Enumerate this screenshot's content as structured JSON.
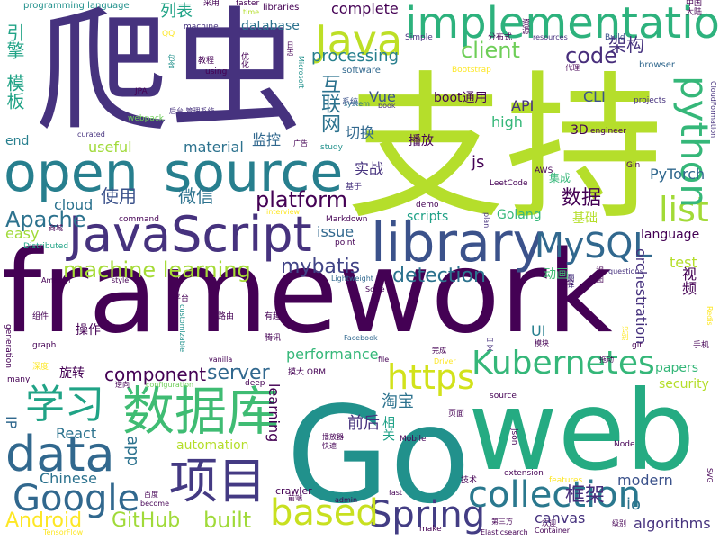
{
  "cloud": {
    "colors": {
      "dark_purple": "#440154",
      "purple": "#46327e",
      "indigo": "#3b528b",
      "blue": "#31688e",
      "teal": "#277f8e",
      "teal_green": "#1fa187",
      "green": "#35b779",
      "light_green": "#6ece58",
      "lime": "#b5de2b",
      "yellow": "#fde725"
    },
    "words": [
      "framework",
      "Go",
      "web",
      "支持",
      "爬虫",
      "open",
      "source",
      "JavaScript",
      "library",
      "implementation",
      "Java",
      "数据库",
      "项目",
      "data",
      "Google",
      "collection",
      "Kubernetes",
      "Spring",
      "MySQL",
      "list",
      "https",
      "based",
      "python",
      "学习",
      "machine learning",
      "mybatis",
      "Apache",
      "detection",
      "client",
      "platform",
      "code",
      "Android",
      "GitHub",
      "built",
      "server",
      "component",
      "框架",
      "互联网",
      "模板",
      "引擎",
      "微信",
      "使用",
      "数据",
      "实战",
      "切换",
      "监控",
      "架构",
      "processing",
      "database",
      "列表",
      "complete",
      "programming language",
      "machine",
      "libraries",
      "faster",
      "采用",
      "time",
      "QQ",
      "教程",
      "using",
      "包含",
      "优化",
      "系统",
      "software",
      "Bootstrap",
      "资源",
      "分布式",
      "Simple",
      "resources",
      "Build",
      "中国",
      "大陆",
      "代理",
      "browser",
      "projects",
      "CloudFormation",
      "engineer",
      "Gin",
      "AWS",
      "LeetCode",
      "集成",
      "基于",
      "demo",
      "plan",
      "Markdown",
      "interview",
      "point",
      "商城",
      "Distributed",
      "easy",
      "command",
      "cloud",
      "useful",
      "material",
      "end",
      "3D",
      "high",
      "API",
      "CLI",
      "boot通用",
      "Vue",
      "book",
      "system",
      "study",
      "广告",
      "JPA",
      "webpack",
      "curated",
      "后台 管理系统",
      "Microsoft",
      "日志",
      "Amazon",
      "style",
      "Lightweight",
      "Scale",
      "questions",
      "平台",
      "路由",
      "有趣",
      "腾讯",
      "customizable",
      "vanilla",
      "deep",
      "configuration",
      "最全",
      "Redis",
      "git",
      "翻译",
      "识别",
      "模块",
      "完成",
      "Facebook",
      "Driver",
      "拖动",
      "中文",
      "performance",
      "orchestration",
      "security",
      "papers",
      "UI",
      "React",
      "Chinese",
      "淘宝",
      "前后",
      "相关",
      "页面",
      "播放器",
      "快速",
      "Mobile",
      "json",
      "SVG",
      "Node",
      "技术",
      "extension",
      "features",
      "级别",
      "Container",
      "Elasticsearch",
      "第三方",
      "欢迎",
      "make",
      "admin",
      "fast",
      "前端",
      "crawler",
      "百度",
      "become",
      "TensorFlow",
      "modern",
      "algorithms",
      "canvas",
      "io",
      "app",
      "automation",
      "learning",
      "IP",
      "PyTorch",
      "视频",
      "test",
      "language",
      "Golang",
      "基础",
      "动画",
      "scripts",
      "issue",
      "js",
      "播放",
      "操作",
      "旋转",
      "generation",
      "graph",
      "组件",
      "深度",
      "many",
      "逆向",
      "摸大 ORM",
      "file",
      "视图",
      "手机",
      "source"
    ]
  }
}
